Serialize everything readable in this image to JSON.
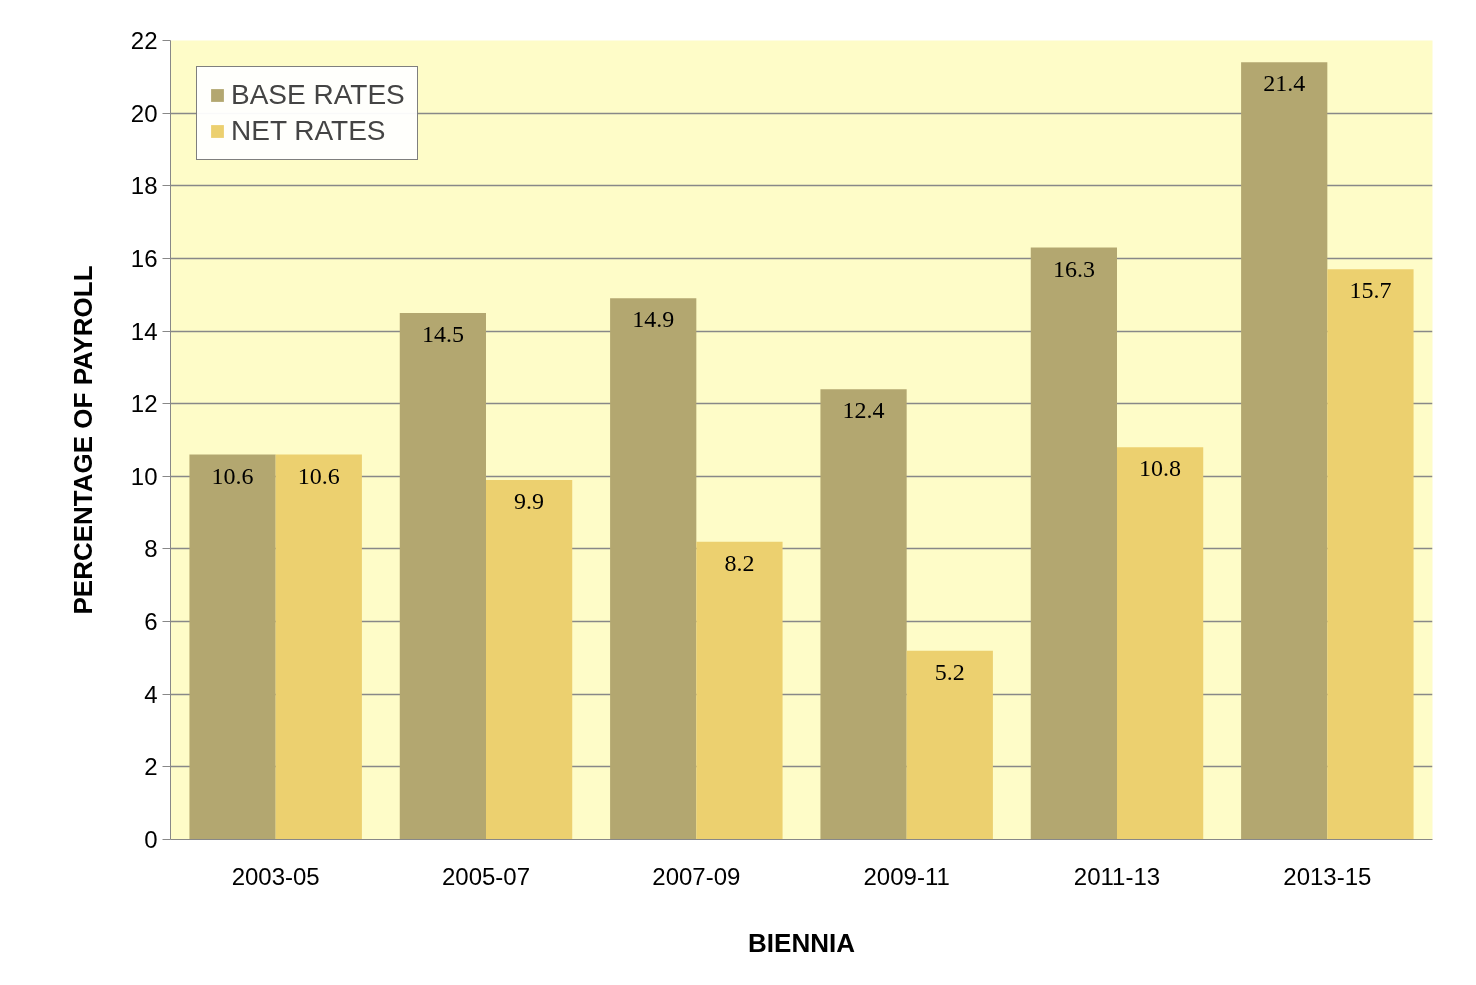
{
  "chart_data": {
    "type": "bar",
    "xlabel": "BIENNIA",
    "ylabel": "PERCENTAGE OF PAYROLL",
    "categories": [
      "2003-05",
      "2005-07",
      "2007-09",
      "2009-11",
      "2011-13",
      "2013-15"
    ],
    "series": [
      {
        "name": "BASE RATES",
        "color": "#b3a770",
        "values": [
          10.6,
          14.5,
          14.9,
          12.4,
          16.3,
          21.4
        ]
      },
      {
        "name": "NET RATES",
        "color": "#ecd06f",
        "values": [
          10.6,
          9.9,
          8.2,
          5.2,
          10.8,
          15.7
        ]
      }
    ],
    "ylim": [
      0,
      22
    ],
    "yticks": [
      0,
      2,
      4,
      6,
      8,
      10,
      12,
      14,
      16,
      18,
      20,
      22
    ],
    "grid": "y",
    "legend": "top left",
    "data_labels": true
  }
}
